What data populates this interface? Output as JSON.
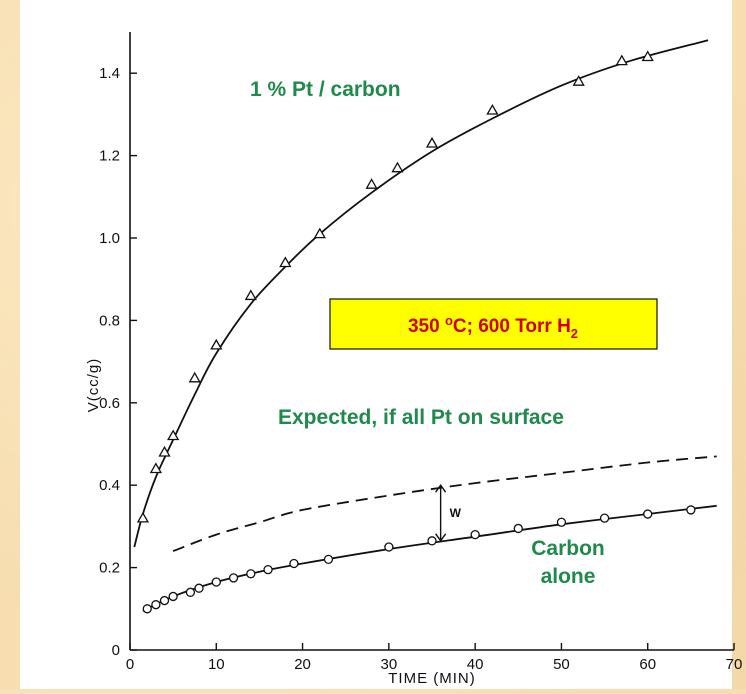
{
  "chart_data": {
    "type": "line",
    "xlabel": "TIME (MIN)",
    "ylabel": "V(cc/g)",
    "xlim": [
      0,
      70
    ],
    "ylim": [
      0,
      1.5
    ],
    "xticks": [
      "0",
      "10",
      "20",
      "30",
      "40",
      "50",
      "60",
      "70"
    ],
    "yticks": [
      "0",
      "0.2",
      "0.4",
      "0.6",
      "0.8",
      "1.0",
      "1.2",
      "1.4"
    ],
    "grid": false,
    "series": [
      {
        "name": "1 % Pt / carbon",
        "marker": "triangle",
        "color": "#1f8a4c",
        "points": [
          [
            1.5,
            0.32
          ],
          [
            3,
            0.44
          ],
          [
            4,
            0.48
          ],
          [
            5,
            0.52
          ],
          [
            7.5,
            0.66
          ],
          [
            10,
            0.74
          ],
          [
            14,
            0.86
          ],
          [
            18,
            0.94
          ],
          [
            22,
            1.01
          ],
          [
            28,
            1.13
          ],
          [
            31,
            1.17
          ],
          [
            35,
            1.23
          ],
          [
            42,
            1.31
          ],
          [
            52,
            1.38
          ],
          [
            57,
            1.43
          ],
          [
            60,
            1.44
          ]
        ],
        "curve": [
          [
            0.5,
            0.25
          ],
          [
            1.5,
            0.33
          ],
          [
            3,
            0.42
          ],
          [
            5,
            0.51
          ],
          [
            7.5,
            0.62
          ],
          [
            10,
            0.72
          ],
          [
            14,
            0.84
          ],
          [
            18,
            0.93
          ],
          [
            22,
            1.01
          ],
          [
            28,
            1.11
          ],
          [
            35,
            1.21
          ],
          [
            42,
            1.29
          ],
          [
            50,
            1.37
          ],
          [
            58,
            1.43
          ],
          [
            67,
            1.48
          ]
        ]
      },
      {
        "name": "Expected, if all Pt on surface",
        "dashed": true,
        "color": "#1f8a4c",
        "curve": [
          [
            5,
            0.24
          ],
          [
            10,
            0.28
          ],
          [
            15,
            0.31
          ],
          [
            20,
            0.34
          ],
          [
            30,
            0.375
          ],
          [
            40,
            0.405
          ],
          [
            50,
            0.43
          ],
          [
            60,
            0.455
          ],
          [
            68,
            0.47
          ]
        ]
      },
      {
        "name": "Carbon alone",
        "marker": "circle",
        "color": "#1f8a4c",
        "points": [
          [
            2,
            0.1
          ],
          [
            3,
            0.11
          ],
          [
            4,
            0.12
          ],
          [
            5,
            0.13
          ],
          [
            7,
            0.14
          ],
          [
            8,
            0.15
          ],
          [
            10,
            0.165
          ],
          [
            12,
            0.175
          ],
          [
            14,
            0.185
          ],
          [
            16,
            0.195
          ],
          [
            19,
            0.21
          ],
          [
            23,
            0.22
          ],
          [
            30,
            0.25
          ],
          [
            35,
            0.265
          ],
          [
            40,
            0.28
          ],
          [
            45,
            0.295
          ],
          [
            50,
            0.31
          ],
          [
            55,
            0.32
          ],
          [
            60,
            0.33
          ],
          [
            65,
            0.34
          ]
        ],
        "curve": [
          [
            1.5,
            0.095
          ],
          [
            5,
            0.13
          ],
          [
            10,
            0.165
          ],
          [
            15,
            0.19
          ],
          [
            20,
            0.21
          ],
          [
            30,
            0.245
          ],
          [
            40,
            0.275
          ],
          [
            50,
            0.305
          ],
          [
            60,
            0.33
          ],
          [
            68,
            0.35
          ]
        ]
      }
    ],
    "annotations": [
      {
        "text": "W",
        "x": 36,
        "y_from": 0.265,
        "y_to": 0.4
      }
    ]
  },
  "labels": {
    "pt_carbon": "1 % Pt / carbon",
    "expected": "Expected, if all Pt on surface",
    "carbon_line1": "Carbon",
    "carbon_line2": "alone",
    "conditions_prefix": "350 ",
    "conditions_degree": "o",
    "conditions_mid": "C; 600 Torr H",
    "conditions_sub": "2"
  },
  "colors": {
    "label_green": "#1f8a4c",
    "condition_red": "#d10000",
    "condition_box_fill": "#ffff00",
    "panel_white": "#ffffff"
  }
}
